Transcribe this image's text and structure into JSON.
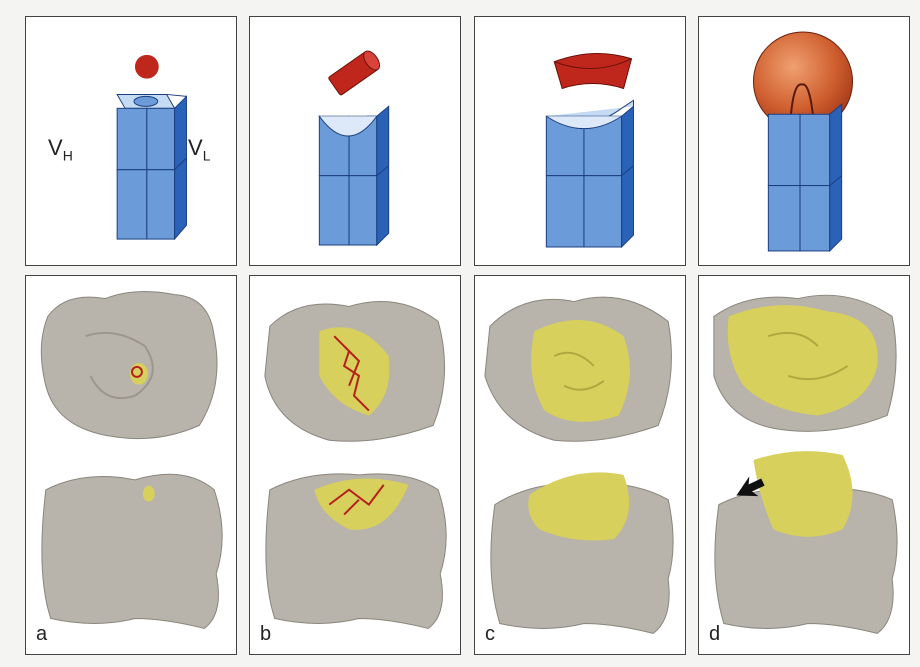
{
  "labels": {
    "vh_main": "V",
    "vh_sub": "H",
    "vl_main": "V",
    "vl_sub": "L"
  },
  "panels": [
    {
      "id": "a",
      "label": "a",
      "antigen": "sphere"
    },
    {
      "id": "b",
      "label": "b",
      "antigen": "cylinder"
    },
    {
      "id": "c",
      "label": "c",
      "antigen": "curved-slab"
    },
    {
      "id": "d",
      "label": "d",
      "antigen": "large-sphere"
    }
  ],
  "colors": {
    "domain_face": "#6b9bd8",
    "domain_side": "#2a62b8",
    "domain_top": "#c5daf3",
    "antigen": "#c0271c",
    "protein_surface": "#b8b3ab",
    "contact_area": "#d8d05c",
    "ligand": "#b41f1a"
  }
}
